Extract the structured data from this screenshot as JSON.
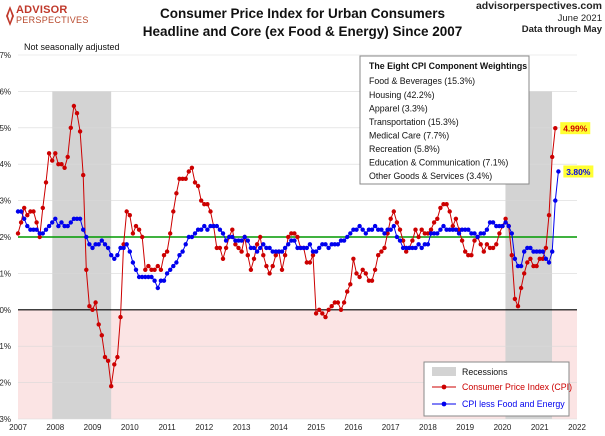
{
  "logo": {
    "line1": "ADVISOR",
    "line2": "PERSPECTIVES"
  },
  "header": {
    "title_line1": "Consumer Price Index for Urban Consumers",
    "title_line2": "Headline and Core (ex Food & Energy) Since 2007",
    "site": "advisorperspectives.com",
    "date": "June 2021",
    "through": "Data through May"
  },
  "note": "Not seasonally adjusted",
  "weightings": {
    "title": "The Eight CPI Component Weightings",
    "items": [
      "Food & Beverages (15.3%)",
      "Housing (42.2%)",
      "Apparel (3.3%)",
      "Transportation (15.3%)",
      "Medical Care (7.7%)",
      "Recreation (5.8%)",
      "Education & Communication (7.1%)",
      "Other Goods & Services (3.4%)"
    ]
  },
  "legend": {
    "recession": "Recessions",
    "headline": "Consumer Price Index (CPI)",
    "core": "CPI less Food and Energy"
  },
  "colors": {
    "headline": "#cc0000",
    "core": "#0000ee",
    "target": "#009900",
    "recession": "#d3d3d3",
    "negative": "#fbe4e4",
    "label_bg": "#ffff33"
  },
  "chart_data": {
    "type": "line",
    "title": "Consumer Price Index for Urban Consumers Headline and Core (ex Food & Energy) Since 2007",
    "xlabel": "",
    "ylabel": "",
    "xlim": [
      2007,
      2022
    ],
    "ylim": [
      -3,
      7
    ],
    "x_ticks": [
      "2007",
      "2008",
      "2009",
      "2010",
      "2011",
      "2012",
      "2013",
      "2014",
      "2015",
      "2016",
      "2017",
      "2018",
      "2019",
      "2020",
      "2021",
      "2022"
    ],
    "y_ticks": [
      "-3%",
      "-2%",
      "-1%",
      "0%",
      "1%",
      "2%",
      "3%",
      "4%",
      "5%",
      "6%",
      "7%"
    ],
    "target_line": {
      "value": 2,
      "label": "2%"
    },
    "recessions": [
      [
        2007.92,
        2009.5
      ],
      [
        2020.08,
        2021.33
      ]
    ],
    "end_labels": {
      "headline": "4.99%",
      "core": "3.80%"
    },
    "series": [
      {
        "name": "Consumer Price Index (CPI)",
        "start": 2007.0,
        "step_months": 1,
        "values": [
          2.1,
          2.4,
          2.8,
          2.6,
          2.7,
          2.7,
          2.4,
          2.0,
          2.8,
          3.5,
          4.3,
          4.1,
          4.3,
          4.0,
          4.0,
          3.9,
          4.2,
          5.0,
          5.6,
          5.4,
          4.9,
          3.7,
          1.1,
          0.1,
          0.0,
          0.2,
          -0.4,
          -0.7,
          -1.3,
          -1.4,
          -2.1,
          -1.5,
          -1.3,
          -0.2,
          1.8,
          2.7,
          2.6,
          2.1,
          2.3,
          2.2,
          2.0,
          1.1,
          1.2,
          1.1,
          1.1,
          1.2,
          1.1,
          1.5,
          1.6,
          2.1,
          2.7,
          3.2,
          3.6,
          3.6,
          3.6,
          3.8,
          3.9,
          3.5,
          3.4,
          3.0,
          2.9,
          2.9,
          2.7,
          2.3,
          1.7,
          1.7,
          1.4,
          1.7,
          2.0,
          2.2,
          1.8,
          1.7,
          1.6,
          2.0,
          1.5,
          1.1,
          1.4,
          1.8,
          2.0,
          1.5,
          1.2,
          1.0,
          1.2,
          1.5,
          1.6,
          1.1,
          1.5,
          2.0,
          2.1,
          2.1,
          2.0,
          1.7,
          1.7,
          1.3,
          1.3,
          1.5,
          -0.1,
          0.0,
          -0.1,
          -0.2,
          0.0,
          0.1,
          0.2,
          0.2,
          0.0,
          0.2,
          0.5,
          0.7,
          1.4,
          1.0,
          0.9,
          1.1,
          1.0,
          0.8,
          0.8,
          1.1,
          1.5,
          1.6,
          1.7,
          2.1,
          2.5,
          2.7,
          2.4,
          2.2,
          1.9,
          1.6,
          1.7,
          1.9,
          2.2,
          2.0,
          2.2,
          2.1,
          2.1,
          2.2,
          2.4,
          2.5,
          2.8,
          2.9,
          2.9,
          2.7,
          2.3,
          2.5,
          2.2,
          1.9,
          1.6,
          1.5,
          1.5,
          1.9,
          2.0,
          1.8,
          1.6,
          1.8,
          1.7,
          1.7,
          1.8,
          2.1,
          2.3,
          2.5,
          2.3,
          1.5,
          0.3,
          0.1,
          0.6,
          1.0,
          1.3,
          1.4,
          1.2,
          1.2,
          1.4,
          1.4,
          1.7,
          2.6,
          4.2,
          4.99
        ]
      },
      {
        "name": "CPI less Food and Energy",
        "start": 2007.0,
        "step_months": 1,
        "values": [
          2.7,
          2.7,
          2.5,
          2.3,
          2.2,
          2.2,
          2.2,
          2.1,
          2.1,
          2.2,
          2.3,
          2.4,
          2.5,
          2.3,
          2.4,
          2.3,
          2.3,
          2.4,
          2.5,
          2.5,
          2.5,
          2.2,
          2.0,
          1.8,
          1.7,
          1.8,
          1.8,
          1.9,
          1.8,
          1.7,
          1.5,
          1.4,
          1.5,
          1.7,
          1.7,
          1.8,
          1.6,
          1.3,
          1.1,
          0.9,
          0.9,
          0.9,
          0.9,
          0.9,
          0.8,
          0.6,
          0.8,
          0.8,
          1.0,
          1.1,
          1.2,
          1.3,
          1.5,
          1.6,
          1.8,
          2.0,
          2.0,
          2.1,
          2.2,
          2.2,
          2.3,
          2.2,
          2.3,
          2.3,
          2.3,
          2.2,
          2.1,
          1.9,
          2.0,
          2.0,
          1.9,
          1.9,
          1.9,
          2.0,
          1.9,
          1.7,
          1.7,
          1.6,
          1.7,
          1.8,
          1.7,
          1.7,
          1.6,
          1.6,
          1.6,
          1.6,
          1.7,
          1.8,
          1.9,
          1.9,
          1.7,
          1.7,
          1.7,
          1.7,
          1.8,
          1.6,
          1.6,
          1.7,
          1.8,
          1.8,
          1.7,
          1.8,
          1.8,
          1.8,
          1.9,
          1.9,
          2.0,
          2.1,
          2.2,
          2.2,
          2.3,
          2.2,
          2.1,
          2.2,
          2.2,
          2.3,
          2.2,
          2.2,
          2.1,
          2.2,
          2.2,
          2.3,
          2.0,
          1.9,
          1.7,
          1.7,
          1.7,
          1.7,
          1.7,
          1.8,
          1.7,
          1.8,
          1.8,
          2.1,
          2.1,
          2.1,
          2.2,
          2.3,
          2.2,
          2.2,
          2.2,
          2.2,
          2.1,
          2.2,
          2.2,
          2.2,
          2.1,
          2.1,
          2.0,
          2.1,
          2.1,
          2.2,
          2.4,
          2.4,
          2.3,
          2.3,
          2.3,
          2.4,
          2.3,
          2.1,
          1.4,
          1.2,
          1.2,
          1.6,
          1.7,
          1.7,
          1.6,
          1.6,
          1.6,
          1.6,
          1.4,
          1.3,
          1.6,
          3.0,
          3.8
        ]
      }
    ]
  }
}
